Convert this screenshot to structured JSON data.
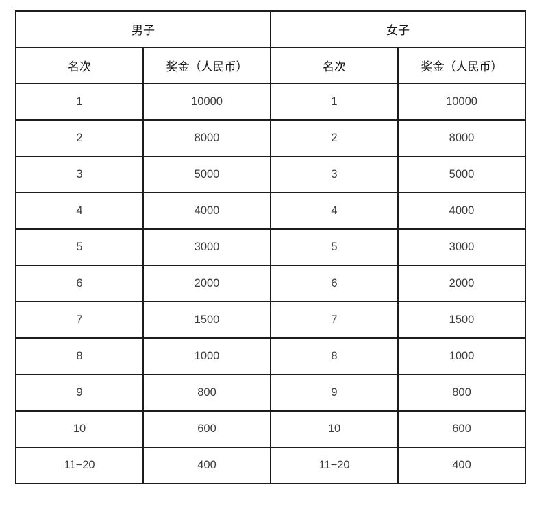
{
  "page": {
    "background": "#ffffff",
    "grid_color": "#1c1c1c",
    "header_text_color": "#141414",
    "value_text_color": "#3c3c3c"
  },
  "table": {
    "groups": [
      {
        "label": "男子",
        "rank_header": "名次",
        "prize_header": "奖金（人民币）",
        "rows": [
          {
            "rank": "1",
            "prize": "10000"
          },
          {
            "rank": "2",
            "prize": "8000"
          },
          {
            "rank": "3",
            "prize": "5000"
          },
          {
            "rank": "4",
            "prize": "4000"
          },
          {
            "rank": "5",
            "prize": "3000"
          },
          {
            "rank": "6",
            "prize": "2000"
          },
          {
            "rank": "7",
            "prize": "1500"
          },
          {
            "rank": "8",
            "prize": "1000"
          },
          {
            "rank": "9",
            "prize": "800"
          },
          {
            "rank": "10",
            "prize": "600"
          },
          {
            "rank": "11−20",
            "prize": "400"
          }
        ]
      },
      {
        "label": "女子",
        "rank_header": "名次",
        "prize_header": "奖金（人民币）",
        "rows": [
          {
            "rank": "1",
            "prize": "10000"
          },
          {
            "rank": "2",
            "prize": "8000"
          },
          {
            "rank": "3",
            "prize": "5000"
          },
          {
            "rank": "4",
            "prize": "4000"
          },
          {
            "rank": "5",
            "prize": "3000"
          },
          {
            "rank": "6",
            "prize": "2000"
          },
          {
            "rank": "7",
            "prize": "1500"
          },
          {
            "rank": "8",
            "prize": "1000"
          },
          {
            "rank": "9",
            "prize": "800"
          },
          {
            "rank": "10",
            "prize": "600"
          },
          {
            "rank": "11−20",
            "prize": "400"
          }
        ]
      }
    ]
  }
}
